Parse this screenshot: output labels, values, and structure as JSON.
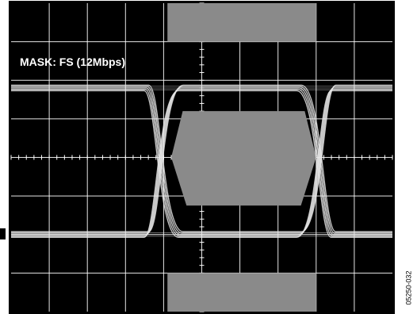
{
  "figure_code": "05250-032",
  "colors": {
    "screen_bg": "#000000",
    "grid": "#ffffff",
    "mask": "#8a8a8a",
    "trace": "#e8e8e8",
    "label_text": "#ffffff",
    "frame": "#000000"
  },
  "chart_data": {
    "type": "eye-diagram",
    "title": "MASK: FS (12Mbps)",
    "xlabel": "",
    "ylabel": "",
    "grid": true,
    "divisions": {
      "x": 10,
      "y": 8
    },
    "x_range_div": [
      0,
      10
    ],
    "y_range_div": [
      -4,
      4
    ],
    "levels_div": {
      "high": 1.8,
      "low": -2.0
    },
    "crossings_div": [
      -1.0,
      3.0
    ],
    "masks": [
      {
        "name": "top-band",
        "shape": "rect",
        "x_div": [
          -0.9,
          3.0
        ],
        "y_div": [
          3.0,
          4.0
        ]
      },
      {
        "name": "center-hexagon",
        "shape": "polygon",
        "points_div": [
          [
            -0.5,
            1.2
          ],
          [
            2.7,
            1.2
          ],
          [
            3.0,
            0.0
          ],
          [
            2.6,
            -1.25
          ],
          [
            -0.4,
            -1.25
          ],
          [
            -0.8,
            0.0
          ]
        ]
      },
      {
        "name": "bottom-band",
        "shape": "rect",
        "x_div": [
          -0.9,
          3.0
        ],
        "y_div": [
          -4.0,
          -3.0
        ]
      }
    ]
  }
}
